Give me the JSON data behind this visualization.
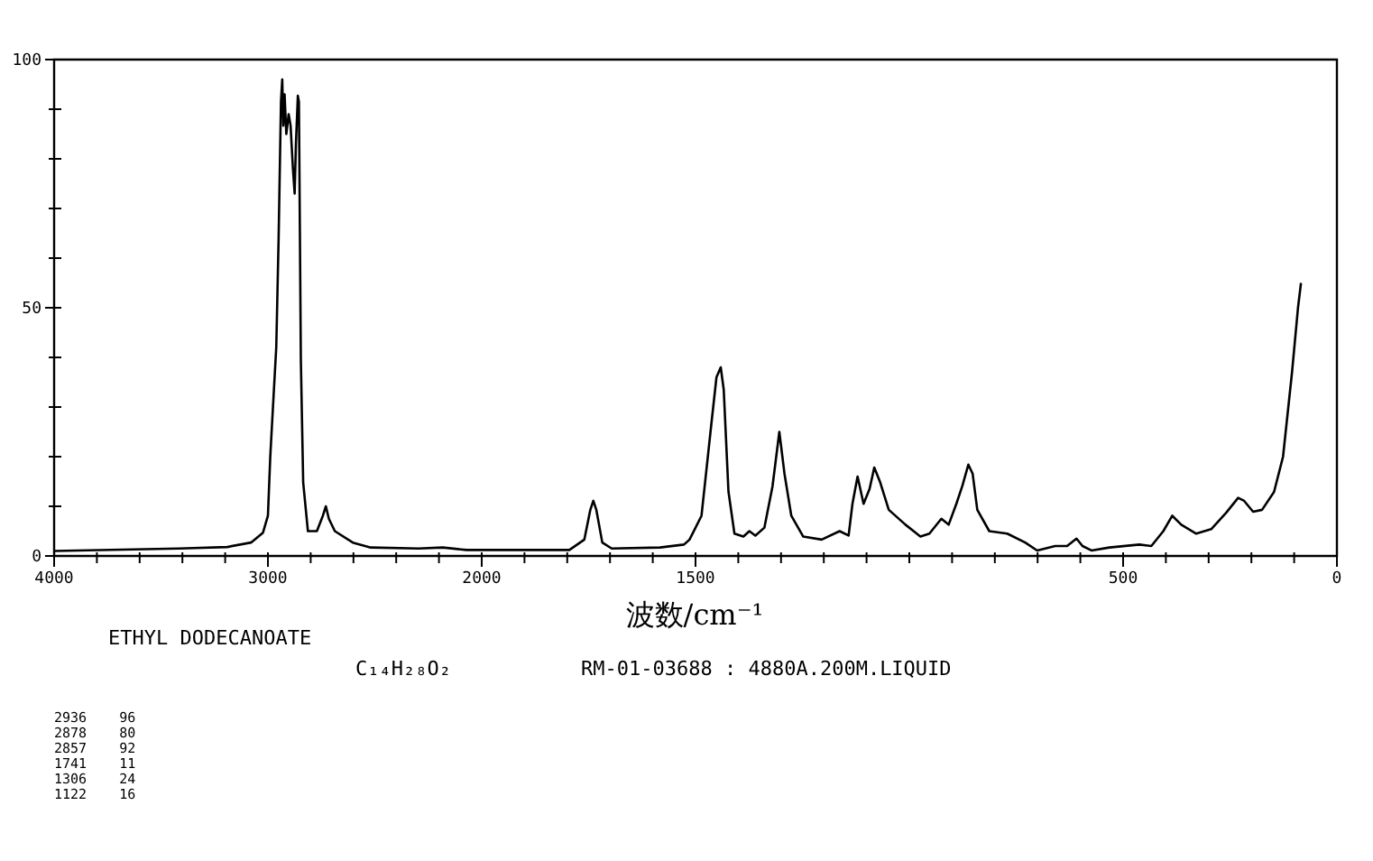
{
  "chart_data": [
    {
      "type": "line",
      "xlabel": "波数/cm⁻¹",
      "color": "#000000",
      "x": [
        4000,
        3415,
        3191,
        3079,
        3023,
        3000,
        2989,
        2972,
        2961,
        2950,
        2939,
        2933,
        2928,
        2922,
        2914,
        2903,
        2894,
        2883,
        2875,
        2869,
        2860,
        2855,
        2846,
        2835,
        2813,
        2771,
        2743,
        2729,
        2715,
        2687,
        2603,
        2519,
        2295,
        2183,
        2071,
        2000
      ],
      "values": [
        1,
        1.5,
        1.8,
        2.7,
        4.7,
        8.1,
        20,
        33.5,
        42,
        64,
        91.5,
        96,
        86.7,
        93,
        85,
        89,
        86.7,
        78,
        73,
        83,
        92.7,
        91.5,
        39.5,
        14.8,
        5,
        5,
        8.1,
        10,
        7.5,
        5,
        2.7,
        1.7,
        1.5,
        1.7,
        1.2,
        1.2
      ],
      "xlim": [
        4000,
        2000
      ],
      "ylim": [
        0,
        100
      ],
      "xticks": [
        4000,
        {
          "value": 3800,
          "label": null
        },
        {
          "value": 3600,
          "label": null
        },
        {
          "value": 3400,
          "label": null
        },
        {
          "value": 3200,
          "label": null
        },
        3000,
        {
          "value": 2800,
          "label": null
        },
        {
          "value": 2600,
          "label": null
        },
        {
          "value": 2400,
          "label": null
        },
        {
          "value": 2200,
          "label": null
        },
        2000
      ],
      "yticks": [
        0,
        {
          "value": 10,
          "label": null
        },
        {
          "value": 20,
          "label": null
        },
        {
          "value": 30,
          "label": null
        },
        {
          "value": 40,
          "label": null
        },
        50,
        {
          "value": 60,
          "label": null
        },
        {
          "value": 70,
          "label": null
        },
        {
          "value": 80,
          "label": null
        },
        {
          "value": 90,
          "label": null
        },
        100
      ],
      "annotations": [
        "ETHYL DODECANOATE",
        "C₁₄H₂₈O₂",
        "RM-01-03688 : 4880A.200M.LIQUID",
        "2936    96",
        "2878    80",
        "2857    92",
        "1741    11",
        "1306    24",
        "1122    16"
      ]
    },
    {
      "type": "line",
      "color": "#000000",
      "tick_labels": "x",
      "x": [
        2000,
        1795,
        1760,
        1746,
        1739,
        1732,
        1718,
        1696,
        1583,
        1527,
        1514,
        1486,
        1465,
        1451,
        1441,
        1434,
        1423,
        1409,
        1388,
        1374,
        1360,
        1339,
        1320,
        1304,
        1292,
        1276,
        1248,
        1205,
        1163,
        1142,
        1133,
        1121,
        1107,
        1093,
        1082,
        1068,
        1048,
        1009,
        974,
        953,
        925,
        908,
        890,
        876,
        862,
        852,
        841,
        813,
        771,
        729,
        701,
        659,
        631,
        609,
        595,
        574,
        532,
        462,
        434,
        406,
        385,
        364,
        329,
        294,
        259,
        231,
        217,
        196,
        175,
        147,
        126,
        105,
        91,
        84
      ],
      "values": [
        1.2,
        1.2,
        3.3,
        9.3,
        11.1,
        9.3,
        2.7,
        1.5,
        1.7,
        2.3,
        3.3,
        8.1,
        25,
        36,
        38,
        33.5,
        13,
        4.5,
        3.9,
        5,
        4.1,
        5.7,
        14,
        25,
        16.6,
        8.1,
        3.9,
        3.3,
        5,
        4.1,
        10.5,
        16,
        10.5,
        13.5,
        17.8,
        14.8,
        9.3,
        6.3,
        3.9,
        4.5,
        7.5,
        6.3,
        10.5,
        14.1,
        18.4,
        16.6,
        9.3,
        5,
        4.5,
        2.7,
        1.1,
        2,
        2,
        3.5,
        2,
        1.1,
        1.7,
        2.3,
        2,
        5,
        8.1,
        6.3,
        4.5,
        5.4,
        8.7,
        11.7,
        11.1,
        8.9,
        9.3,
        12.9,
        20,
        37,
        50,
        55
      ],
      "xlim": [
        2000,
        0
      ],
      "ylim": [
        0,
        100
      ],
      "xticks": [
        {
          "value": 1900,
          "label": null
        },
        {
          "value": 1800,
          "label": null
        },
        {
          "value": 1700,
          "label": null
        },
        {
          "value": 1600,
          "label": null
        },
        1500,
        {
          "value": 1400,
          "label": null
        },
        {
          "value": 1300,
          "label": null
        },
        {
          "value": 1200,
          "label": null
        },
        {
          "value": 1100,
          "label": null
        },
        {
          "value": 1000,
          "label": null
        },
        {
          "value": 900,
          "label": null
        },
        {
          "value": 800,
          "label": null
        },
        {
          "value": 700,
          "label": null
        },
        {
          "value": 600,
          "label": null
        },
        500,
        {
          "value": 400,
          "label": null
        },
        {
          "value": 300,
          "label": null
        },
        {
          "value": 200,
          "label": null
        },
        {
          "value": 100,
          "label": null
        },
        0
      ]
    }
  ]
}
